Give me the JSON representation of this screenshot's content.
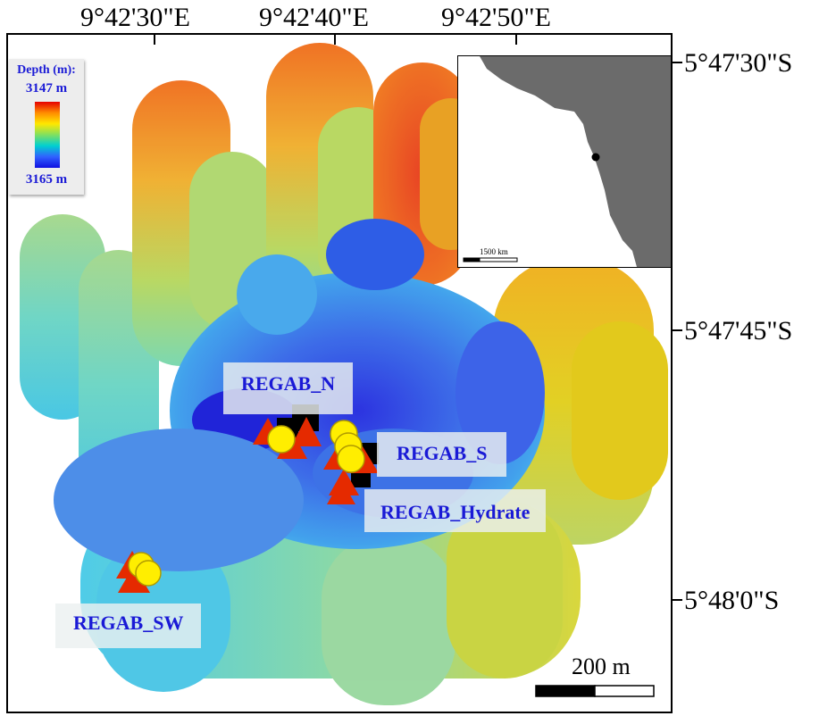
{
  "axes": {
    "top_labels": [
      "9°42'30\"E",
      "9°42'40\"E",
      "9°42'50\"E"
    ],
    "right_labels": [
      "5°47'30\"S",
      "5°47'45\"S",
      "5°48'0\"S"
    ]
  },
  "legend": {
    "title": "Depth (m):",
    "max": "3147 m",
    "min": "3165 m",
    "colors": [
      "#e60000",
      "#ff8c00",
      "#ffe800",
      "#80e060",
      "#00d0d0",
      "#3060ff",
      "#1010e0"
    ]
  },
  "sites": {
    "regab_n": "REGAB_N",
    "regab_s": "REGAB_S",
    "regab_hydrate": "REGAB_Hydrate",
    "regab_sw": "REGAB_SW"
  },
  "markers": {
    "triangle_color": "#e52a00",
    "circle_color": "#ffee00",
    "square_color": "#000000"
  },
  "inset": {
    "scale_label": "1500 km",
    "land_color": "#6b6b6b"
  },
  "scale_bar": {
    "label": "200 m"
  }
}
